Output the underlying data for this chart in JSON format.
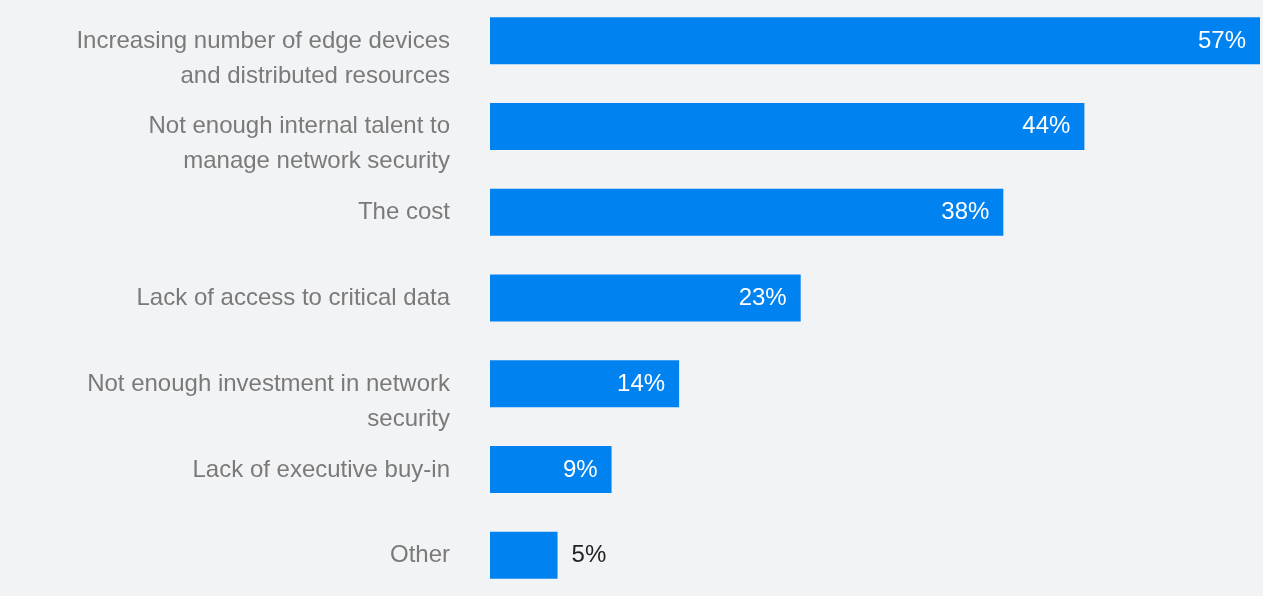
{
  "chart_data": {
    "type": "bar",
    "orientation": "horizontal",
    "categories": [
      "Increasing number of edge devices and distributed resources",
      "Not enough internal talent to manage network security",
      "The cost",
      "Lack of access to critical data",
      "Not enough investment in network security",
      "Lack of executive buy-in",
      "Other"
    ],
    "values": [
      57,
      44,
      38,
      23,
      14,
      9,
      5
    ],
    "value_labels": [
      "57%",
      "44%",
      "38%",
      "23%",
      "14%",
      "9%",
      "5%"
    ],
    "color": "#0082f0"
  }
}
